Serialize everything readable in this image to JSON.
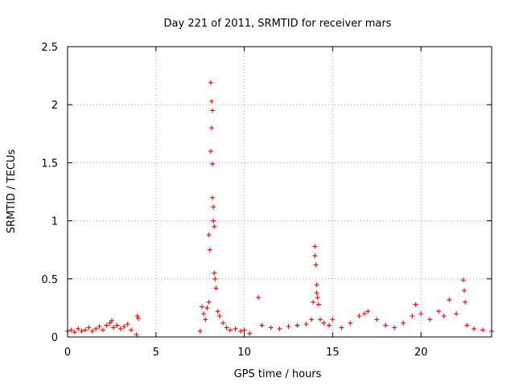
{
  "chart_data": {
    "type": "scatter",
    "title": "Day 221 of 2011, SRMTID for receiver mars",
    "xlabel": "GPS time / hours",
    "ylabel": "SRMTID / TECUs",
    "xlim": [
      0,
      24
    ],
    "ylim": [
      0,
      2.5
    ],
    "x_ticks": [
      0,
      5,
      10,
      15,
      20
    ],
    "y_ticks": [
      0,
      0.5,
      1,
      1.5,
      2,
      2.5
    ],
    "x_tick_labels": [
      "0",
      "5",
      "10",
      "15",
      "20"
    ],
    "y_tick_labels": [
      "0",
      "0.5",
      "1",
      "1.5",
      "2",
      "2.5"
    ],
    "grid": true,
    "marker": "+",
    "series": [
      {
        "name": "SRMTID",
        "color": "#ff0000",
        "x": [
          0.0,
          0.2,
          0.4,
          0.6,
          0.8,
          1.0,
          1.2,
          1.4,
          1.6,
          1.8,
          2.0,
          2.2,
          2.4,
          2.5,
          2.6,
          2.8,
          3.0,
          3.2,
          3.4,
          3.6,
          3.9,
          3.95,
          4.0,
          7.5,
          7.6,
          7.7,
          7.8,
          7.9,
          8.0,
          8.0,
          8.05,
          8.1,
          8.1,
          8.15,
          8.15,
          8.2,
          8.2,
          8.2,
          8.25,
          8.25,
          8.3,
          8.3,
          8.35,
          8.4,
          8.5,
          8.6,
          8.8,
          9.0,
          9.2,
          9.5,
          9.8,
          10.0,
          10.3,
          10.8,
          11.0,
          11.5,
          12.0,
          12.5,
          13.0,
          13.5,
          13.8,
          13.9,
          14.0,
          14.0,
          14.05,
          14.1,
          14.1,
          14.15,
          14.2,
          14.3,
          14.5,
          14.8,
          15.0,
          15.5,
          16.0,
          16.5,
          16.8,
          17.0,
          17.5,
          18.0,
          18.5,
          19.0,
          19.5,
          19.7,
          20.0,
          20.5,
          21.0,
          21.3,
          21.6,
          22.0,
          22.4,
          22.45,
          22.5,
          22.6,
          23.0,
          23.5,
          24.0
        ],
        "y": [
          0.05,
          0.06,
          0.04,
          0.07,
          0.05,
          0.06,
          0.08,
          0.05,
          0.07,
          0.09,
          0.06,
          0.1,
          0.12,
          0.14,
          0.08,
          0.1,
          0.07,
          0.09,
          0.11,
          0.06,
          0.02,
          0.18,
          0.16,
          0.05,
          0.26,
          0.2,
          0.15,
          0.25,
          0.3,
          0.88,
          0.75,
          2.19,
          1.6,
          2.03,
          1.8,
          1.95,
          1.49,
          1.2,
          1.12,
          1.0,
          0.95,
          0.55,
          0.5,
          0.42,
          0.22,
          0.18,
          0.12,
          0.08,
          0.06,
          0.07,
          0.05,
          0.06,
          0.03,
          0.34,
          0.1,
          0.08,
          0.07,
          0.09,
          0.1,
          0.11,
          0.15,
          0.3,
          0.78,
          0.7,
          0.62,
          0.45,
          0.38,
          0.34,
          0.28,
          0.15,
          0.12,
          0.1,
          0.15,
          0.08,
          0.12,
          0.18,
          0.2,
          0.22,
          0.15,
          0.1,
          0.08,
          0.12,
          0.18,
          0.28,
          0.2,
          0.15,
          0.22,
          0.18,
          0.32,
          0.2,
          0.49,
          0.4,
          0.3,
          0.1,
          0.07,
          0.06,
          0.05
        ]
      }
    ]
  }
}
